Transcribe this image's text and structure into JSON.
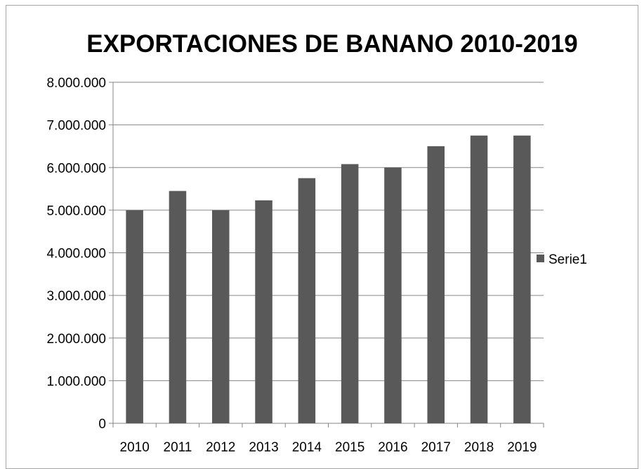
{
  "chart_data": {
    "type": "bar",
    "title": "EXPORTACIONES DE BANANO 2010-2019",
    "xlabel": "",
    "ylabel": "",
    "categories": [
      "2010",
      "2011",
      "2012",
      "2013",
      "2014",
      "2015",
      "2016",
      "2017",
      "2018",
      "2019"
    ],
    "series": [
      {
        "name": "Serie1",
        "values": [
          5000000,
          5450000,
          5000000,
          5230000,
          5750000,
          6080000,
          6000000,
          6500000,
          6750000,
          6750000
        ]
      }
    ],
    "ylim": [
      0,
      8000000
    ],
    "yticks": [
      0,
      1000000,
      2000000,
      3000000,
      4000000,
      5000000,
      6000000,
      7000000,
      8000000
    ],
    "ytick_labels": [
      "0",
      "1.000.000",
      "2.000.000",
      "3.000.000",
      "4.000.000",
      "5.000.000",
      "6.000.000",
      "7.000.000",
      "8.000.000"
    ],
    "grid": true,
    "legend": "right",
    "colors": {
      "bar": "#595959",
      "grid": "#868686",
      "axis": "#868686"
    }
  }
}
